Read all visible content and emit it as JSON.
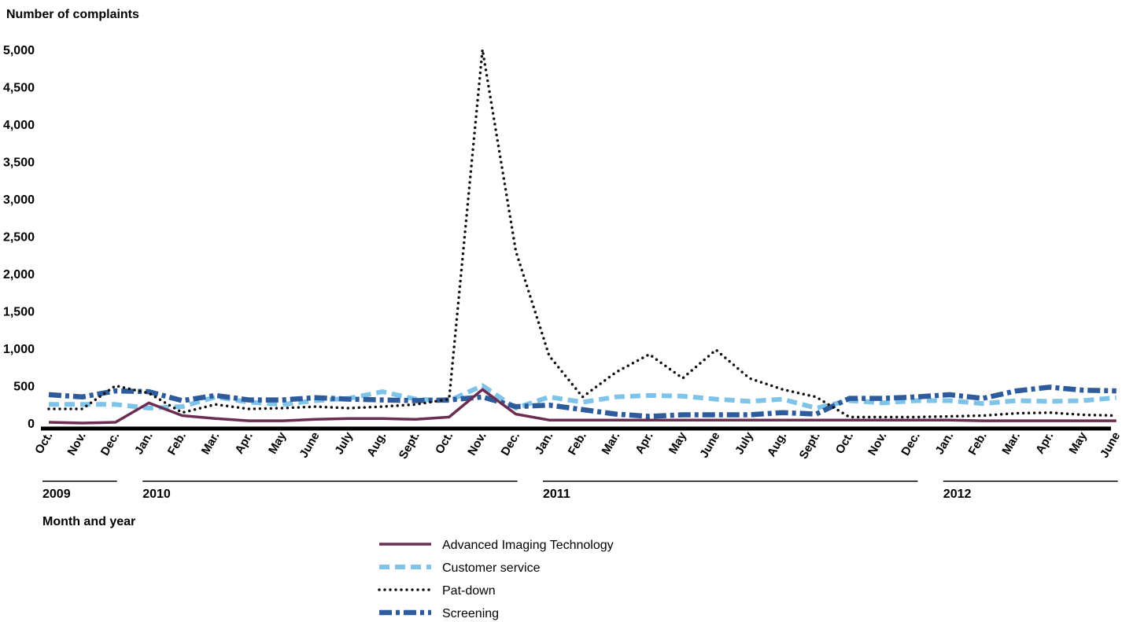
{
  "chart_data": {
    "type": "line",
    "ylabel": "Number of complaints",
    "xlabel": "Month and year",
    "ylim": [
      0,
      5000
    ],
    "yticks": [
      "0",
      "500",
      "1,000",
      "1,500",
      "2,000",
      "2,500",
      "3,000",
      "3,500",
      "4,000",
      "4,500",
      "5,000"
    ],
    "categories": [
      "Oct.",
      "Nov.",
      "Dec.",
      "Jan.",
      "Feb.",
      "Mar.",
      "Apr.",
      "May",
      "June",
      "July",
      "Aug.",
      "Sept.",
      "Oct.",
      "Nov.",
      "Dec.",
      "Jan.",
      "Feb.",
      "Mar.",
      "Apr.",
      "May",
      "June",
      "July",
      "Aug.",
      "Sept.",
      "Oct.",
      "Nov.",
      "Dec.",
      "Jan.",
      "Feb.",
      "Mar.",
      "Apr.",
      "May",
      "June"
    ],
    "years": [
      {
        "label": "2009",
        "start": 0,
        "end": 2
      },
      {
        "label": "2010",
        "start": 3,
        "end": 14
      },
      {
        "label": "2011",
        "start": 15,
        "end": 26
      },
      {
        "label": "2012",
        "start": 27,
        "end": 32
      }
    ],
    "grid": false,
    "legend_position": "bottom-center",
    "series": [
      {
        "name": "Advanced Imaging Technology",
        "color": "#6b2d52",
        "style": "solid",
        "values": [
          10,
          0,
          10,
          270,
          100,
          60,
          30,
          30,
          50,
          60,
          60,
          50,
          80,
          450,
          120,
          40,
          40,
          40,
          40,
          40,
          40,
          40,
          40,
          40,
          40,
          40,
          40,
          40,
          30,
          30,
          30,
          30,
          30
        ]
      },
      {
        "name": "Customer service",
        "color": "#7fc4e8",
        "style": "dash",
        "values": [
          250,
          250,
          250,
          200,
          220,
          350,
          280,
          250,
          300,
          330,
          420,
          320,
          300,
          500,
          200,
          350,
          280,
          350,
          370,
          360,
          320,
          290,
          320,
          200,
          300,
          270,
          300,
          300,
          260,
          300,
          290,
          300,
          340
        ]
      },
      {
        "name": "Pat-down",
        "color": "#111111",
        "style": "dot",
        "values": [
          190,
          190,
          500,
          400,
          140,
          250,
          190,
          200,
          220,
          200,
          220,
          250,
          320,
          5000,
          2300,
          900,
          350,
          680,
          920,
          600,
          980,
          600,
          450,
          350,
          80,
          80,
          80,
          90,
          100,
          130,
          140,
          110,
          100
        ]
      },
      {
        "name": "Screening",
        "color": "#2d5b9c",
        "style": "dashdot",
        "values": [
          380,
          350,
          430,
          420,
          300,
          370,
          310,
          310,
          340,
          320,
          310,
          300,
          310,
          350,
          220,
          240,
          180,
          120,
          90,
          110,
          110,
          110,
          140,
          120,
          330,
          330,
          350,
          380,
          330,
          430,
          480,
          440,
          430
        ]
      }
    ]
  }
}
